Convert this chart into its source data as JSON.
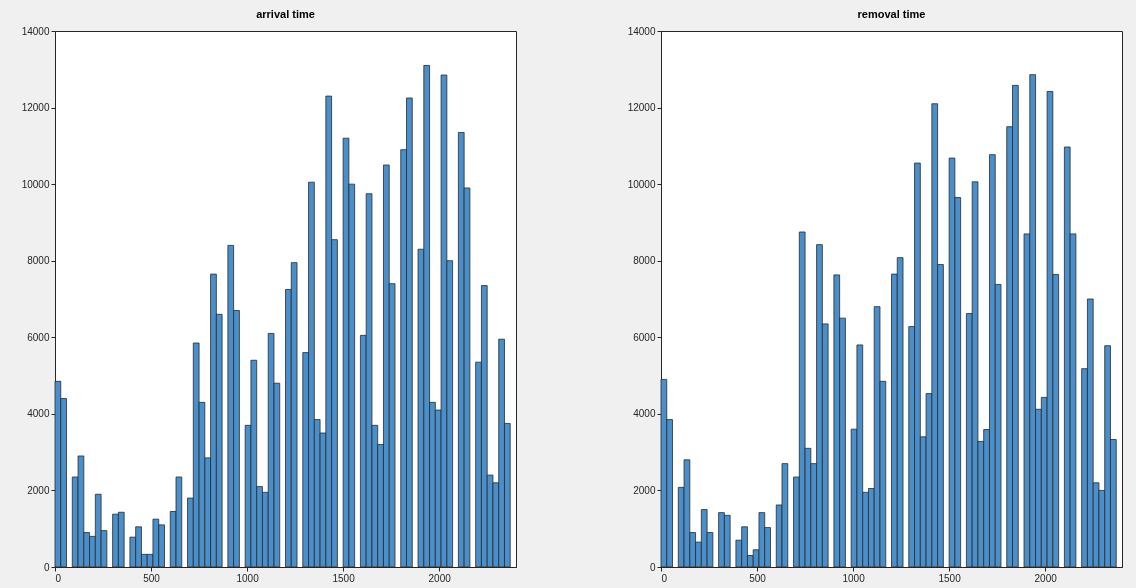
{
  "chart_data": [
    {
      "type": "histogram",
      "title": "arrival time",
      "bins": [
        0,
        30,
        60,
        90,
        120,
        150,
        180,
        210,
        240,
        270,
        300,
        330,
        360,
        390,
        420,
        450,
        480,
        510,
        540,
        570,
        600,
        630,
        660,
        690,
        720,
        750,
        780,
        810,
        840,
        870,
        900,
        930,
        960,
        990,
        1020,
        1050,
        1080,
        1110,
        1140,
        1170,
        1200,
        1230,
        1260,
        1290,
        1320,
        1350,
        1380,
        1410,
        1440,
        1470,
        1500,
        1530,
        1560,
        1590,
        1620,
        1650,
        1680,
        1710,
        1740,
        1770,
        1800,
        1830,
        1860,
        1890,
        1920,
        1950,
        1980,
        2010,
        2040,
        2070,
        2100,
        2130,
        2160,
        2190,
        2220,
        2250,
        2280,
        2310,
        2340,
        2370
      ],
      "values": [
        4850,
        4400,
        0,
        2350,
        2900,
        900,
        800,
        1900,
        950,
        0,
        1380,
        1430,
        0,
        780,
        1050,
        330,
        330,
        1250,
        1100,
        0,
        1450,
        2350,
        0,
        1800,
        5850,
        4300,
        2850,
        7650,
        6600,
        0,
        8400,
        6700,
        0,
        3700,
        5400,
        2100,
        1950,
        6100,
        4800,
        0,
        7250,
        7950,
        0,
        5600,
        10050,
        3850,
        3500,
        12300,
        8550,
        0,
        11200,
        10000,
        0,
        6050,
        9750,
        3700,
        3200,
        10500,
        7400,
        0,
        10900,
        12250,
        0,
        8300,
        13100,
        4300,
        4100,
        12850,
        8000,
        0,
        11350,
        9900,
        0,
        5350,
        7350,
        2400,
        2200,
        5950,
        3750
      ],
      "color": "#4a8fca",
      "xlim": [
        0,
        2400
      ],
      "xticks": [
        0,
        500,
        1000,
        1500,
        2000
      ],
      "ylim": [
        0,
        14000
      ],
      "yticks": [
        0,
        2000,
        4000,
        6000,
        8000,
        10000,
        12000,
        14000
      ]
    },
    {
      "type": "histogram",
      "title": "removal time",
      "bins": [
        0,
        30,
        60,
        90,
        120,
        150,
        180,
        210,
        240,
        270,
        300,
        330,
        360,
        390,
        420,
        450,
        480,
        510,
        540,
        570,
        600,
        630,
        660,
        690,
        720,
        750,
        780,
        810,
        840,
        870,
        900,
        930,
        960,
        990,
        1020,
        1050,
        1080,
        1110,
        1140,
        1170,
        1200,
        1230,
        1260,
        1290,
        1320,
        1350,
        1380,
        1410,
        1440,
        1470,
        1500,
        1530,
        1560,
        1590,
        1620,
        1650,
        1680,
        1710,
        1740,
        1770,
        1800,
        1830,
        1860,
        1890,
        1920,
        1950,
        1980,
        2010,
        2040,
        2070,
        2100,
        2130,
        2160,
        2190,
        2220,
        2250,
        2280,
        2310,
        2340,
        2370
      ],
      "values": [
        4900,
        3850,
        0,
        2080,
        2800,
        900,
        650,
        1500,
        900,
        0,
        1420,
        1350,
        0,
        700,
        1050,
        300,
        450,
        1420,
        1030,
        0,
        1620,
        2700,
        0,
        2350,
        8750,
        3100,
        2700,
        8420,
        6350,
        0,
        7630,
        6500,
        0,
        3600,
        5800,
        1950,
        2050,
        6800,
        4850,
        0,
        7650,
        8080,
        0,
        6280,
        10550,
        3400,
        4530,
        12100,
        7900,
        0,
        10680,
        9650,
        0,
        6620,
        10060,
        3280,
        3590,
        10770,
        7380,
        0,
        11500,
        12580,
        0,
        8700,
        12860,
        4120,
        4430,
        12420,
        7640,
        0,
        10970,
        8700,
        0,
        5180,
        7000,
        2200,
        2000,
        5780,
        3330
      ],
      "color": "#4a8fca",
      "xlim": [
        0,
        2400
      ],
      "xticks": [
        0,
        500,
        1000,
        1500,
        2000
      ],
      "ylim": [
        0,
        14000
      ],
      "yticks": [
        0,
        2000,
        4000,
        6000,
        8000,
        10000,
        12000,
        14000
      ]
    }
  ]
}
